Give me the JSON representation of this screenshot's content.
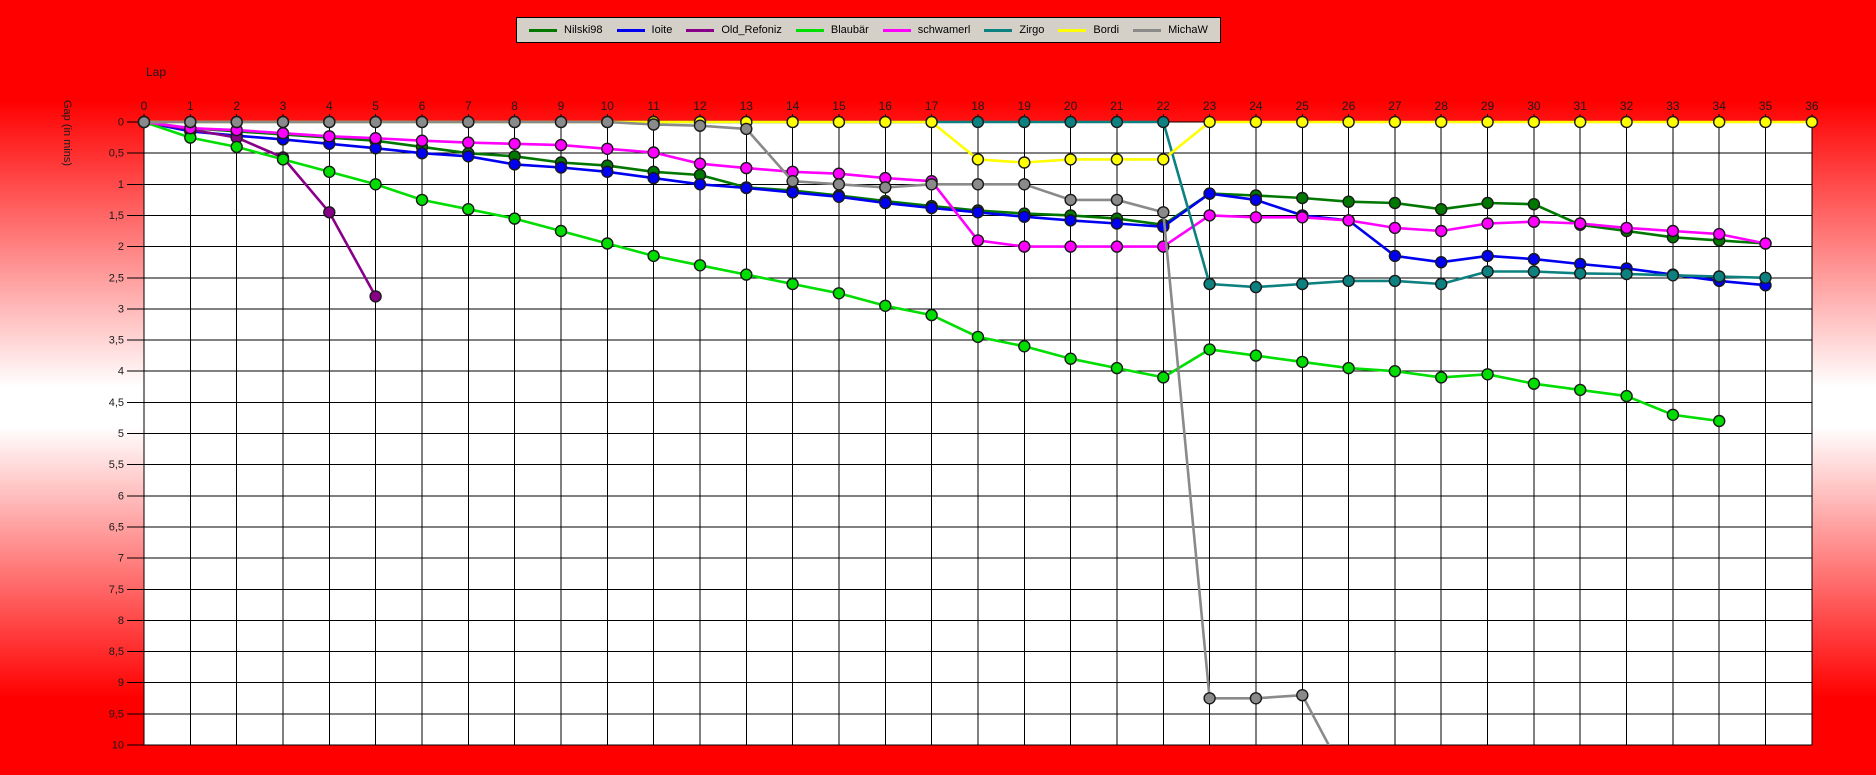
{
  "window": {
    "background_colors": [
      "#ff0000",
      "#ffffff",
      "#ff0000"
    ]
  },
  "legend": {
    "items": [
      {
        "label": "Nilski98",
        "color": "#007800"
      },
      {
        "label": "Ioite",
        "color": "#0000f0"
      },
      {
        "label": "Old_Refoniz",
        "color": "#880088"
      },
      {
        "label": "Blaubär",
        "color": "#00dd00"
      },
      {
        "label": "schwamerl",
        "color": "#ff00ff"
      },
      {
        "label": "Zirgo",
        "color": "#0d8080"
      },
      {
        "label": "Bordi",
        "color": "#ffff00"
      },
      {
        "label": "MichaW",
        "color": "#8a8a8a"
      }
    ]
  },
  "chart_data": {
    "type": "line",
    "title": "",
    "xlabel": "Lap",
    "ylabel": "Gap (in mins)",
    "xlim": [
      0,
      36
    ],
    "ylim": [
      0,
      10
    ],
    "y_inverted": true,
    "grid": true,
    "legend_position": "top-center",
    "x_ticks": [
      "0",
      "1",
      "2",
      "3",
      "4",
      "5",
      "6",
      "7",
      "8",
      "9",
      "10",
      "11",
      "12",
      "13",
      "14",
      "15",
      "16",
      "17",
      "18",
      "19",
      "20",
      "21",
      "22",
      "23",
      "24",
      "25",
      "26",
      "27",
      "28",
      "29",
      "30",
      "31",
      "32",
      "33",
      "34",
      "35",
      "36"
    ],
    "y_ticks": [
      "0",
      "0,5",
      "1",
      "1,5",
      "2",
      "2,5",
      "3",
      "3,5",
      "4",
      "4,5",
      "5",
      "5,5",
      "6",
      "6,5",
      "7",
      "7,5",
      "8",
      "8,5",
      "9",
      "9,5",
      "10"
    ],
    "series": [
      {
        "name": "Nilski98",
        "color": "#007800",
        "x": [
          0,
          1,
          2,
          3,
          4,
          5,
          6,
          7,
          8,
          9,
          10,
          11,
          12,
          13,
          14,
          15,
          16,
          17,
          18,
          19,
          20,
          21,
          22,
          23,
          24,
          25,
          26,
          27,
          28,
          29,
          30,
          31,
          32,
          33,
          34,
          35
        ],
        "values": [
          0,
          0.1,
          0.15,
          0.2,
          0.25,
          0.3,
          0.4,
          0.5,
          0.55,
          0.65,
          0.7,
          0.8,
          0.85,
          1.05,
          1.1,
          1.18,
          1.27,
          1.35,
          1.42,
          1.47,
          1.5,
          1.55,
          1.65,
          1.15,
          1.18,
          1.22,
          1.28,
          1.3,
          1.4,
          1.3,
          1.32,
          1.65,
          1.75,
          1.85,
          1.9,
          1.95
        ]
      },
      {
        "name": "Ioite",
        "color": "#0000f0",
        "x": [
          0,
          1,
          2,
          3,
          4,
          5,
          6,
          7,
          8,
          9,
          10,
          11,
          12,
          13,
          14,
          15,
          16,
          17,
          18,
          19,
          20,
          21,
          22,
          23,
          24,
          25,
          26,
          27,
          28,
          29,
          30,
          31,
          32,
          33,
          34,
          35
        ],
        "values": [
          0,
          0.15,
          0.22,
          0.28,
          0.35,
          0.42,
          0.5,
          0.55,
          0.68,
          0.73,
          0.8,
          0.9,
          1.0,
          1.06,
          1.13,
          1.2,
          1.3,
          1.38,
          1.45,
          1.52,
          1.58,
          1.63,
          1.68,
          1.15,
          1.25,
          1.5,
          1.58,
          2.15,
          2.25,
          2.15,
          2.2,
          2.28,
          2.35,
          2.45,
          2.55,
          2.62
        ]
      },
      {
        "name": "Old_Refoniz",
        "color": "#880088",
        "x": [
          0,
          1,
          2,
          3,
          4,
          5
        ],
        "values": [
          0,
          0.12,
          0.25,
          0.57,
          1.45,
          2.8
        ]
      },
      {
        "name": "Blaubär",
        "color": "#00dd00",
        "x": [
          0,
          1,
          2,
          3,
          4,
          5,
          6,
          7,
          8,
          9,
          10,
          11,
          12,
          13,
          14,
          15,
          16,
          17,
          18,
          19,
          20,
          21,
          22,
          23,
          24,
          25,
          26,
          27,
          28,
          29,
          30,
          31,
          32,
          33,
          34
        ],
        "values": [
          0,
          0.25,
          0.4,
          0.6,
          0.8,
          1.0,
          1.25,
          1.4,
          1.55,
          1.75,
          1.95,
          2.15,
          2.3,
          2.45,
          2.6,
          2.75,
          2.95,
          3.1,
          3.45,
          3.6,
          3.8,
          3.95,
          4.1,
          3.65,
          3.75,
          3.85,
          3.95,
          4.0,
          4.1,
          4.05,
          4.2,
          4.3,
          4.4,
          4.7,
          4.8
        ]
      },
      {
        "name": "schwamerl",
        "color": "#ff00ff",
        "x": [
          0,
          1,
          2,
          3,
          4,
          5,
          6,
          7,
          8,
          9,
          10,
          11,
          12,
          13,
          14,
          15,
          16,
          17,
          18,
          19,
          20,
          21,
          22,
          23,
          24,
          25,
          26,
          27,
          28,
          29,
          30,
          31,
          32,
          33,
          34,
          35
        ],
        "values": [
          0,
          0.1,
          0.13,
          0.18,
          0.23,
          0.26,
          0.3,
          0.33,
          0.35,
          0.37,
          0.43,
          0.49,
          0.67,
          0.74,
          0.8,
          0.83,
          0.9,
          0.95,
          1.9,
          2.0,
          2.0,
          2.0,
          2.0,
          1.5,
          1.53,
          1.53,
          1.58,
          1.7,
          1.75,
          1.63,
          1.6,
          1.63,
          1.7,
          1.75,
          1.8,
          1.95
        ]
      },
      {
        "name": "Zirgo",
        "color": "#0d8080",
        "x": [
          0,
          1,
          2,
          3,
          4,
          5,
          6,
          7,
          8,
          9,
          10,
          11,
          12,
          13,
          14,
          15,
          16,
          17,
          18,
          19,
          20,
          21,
          22,
          23,
          24,
          25,
          26,
          27,
          28,
          29,
          30,
          31,
          32,
          33,
          34,
          35
        ],
        "values": [
          0,
          0,
          0,
          0,
          0,
          0,
          0,
          0,
          0,
          0,
          0,
          0,
          0,
          0,
          0,
          0,
          0,
          0,
          0,
          0,
          0,
          0,
          0,
          2.6,
          2.65,
          2.6,
          2.55,
          2.55,
          2.6,
          2.4,
          2.4,
          2.43,
          2.44,
          2.46,
          2.48,
          2.5
        ]
      },
      {
        "name": "Bordi",
        "color": "#ffff00",
        "x": [
          0,
          1,
          2,
          3,
          4,
          5,
          6,
          7,
          8,
          9,
          10,
          11,
          12,
          13,
          14,
          15,
          16,
          17,
          18,
          19,
          20,
          21,
          22,
          23,
          24,
          25,
          26,
          27,
          28,
          29,
          30,
          31,
          32,
          33,
          34,
          35,
          36
        ],
        "values": [
          0,
          0,
          0,
          0,
          0,
          0,
          0,
          0,
          0,
          0,
          0,
          0,
          0,
          0,
          0,
          0,
          0,
          0,
          0.6,
          0.65,
          0.6,
          0.6,
          0.6,
          0,
          0,
          0,
          0,
          0,
          0,
          0,
          0,
          0,
          0,
          0,
          0,
          0,
          0
        ]
      },
      {
        "name": "MichaW",
        "color": "#8a8a8a",
        "x": [
          0,
          1,
          2,
          3,
          4,
          5,
          6,
          7,
          8,
          9,
          10,
          11,
          12,
          13,
          14,
          15,
          16,
          17,
          18,
          19,
          20,
          21,
          22,
          23,
          24,
          25,
          26
        ],
        "values": [
          0,
          0,
          0,
          0,
          0,
          0,
          0,
          0,
          0,
          0,
          0,
          0.04,
          0.06,
          0.11,
          0.95,
          1.0,
          1.05,
          1.0,
          1.0,
          1.0,
          1.25,
          1.25,
          1.45,
          9.25,
          9.25,
          9.2,
          10.6
        ],
        "note_last_point_offchart": true
      }
    ]
  }
}
